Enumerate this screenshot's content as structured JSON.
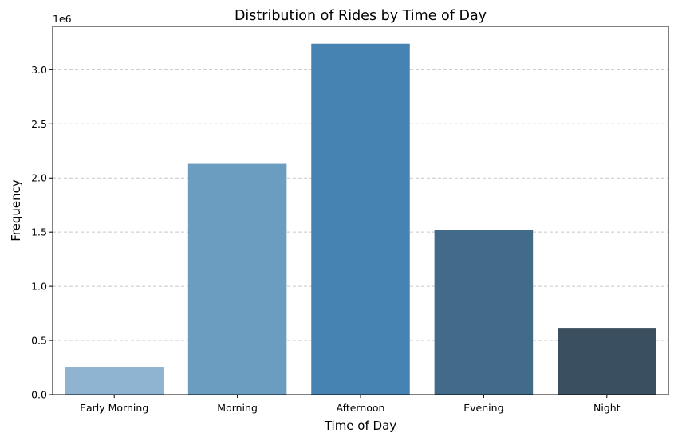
{
  "chart_data": {
    "type": "bar",
    "title": "Distribution of Rides by Time of Day",
    "xlabel": "Time of Day",
    "ylabel": "Frequency",
    "y_offset_label": "1e6",
    "categories": [
      "Early Morning",
      "Morning",
      "Afternoon",
      "Evening",
      "Night"
    ],
    "values": [
      250000,
      2130000,
      3240000,
      1520000,
      610000
    ],
    "colors": [
      "#8fb4d1",
      "#6a9dc0",
      "#4783b2",
      "#426b89",
      "#3a4f5f"
    ],
    "ylim": [
      0,
      3400000
    ],
    "yticks": [
      0,
      500000,
      1000000,
      1500000,
      2000000,
      2500000,
      3000000
    ],
    "ytick_labels": [
      "0.0",
      "0.5",
      "1.0",
      "1.5",
      "2.0",
      "2.5",
      "3.0"
    ],
    "grid": "horizontal dashed",
    "grid_color": "#c8c8c8"
  }
}
